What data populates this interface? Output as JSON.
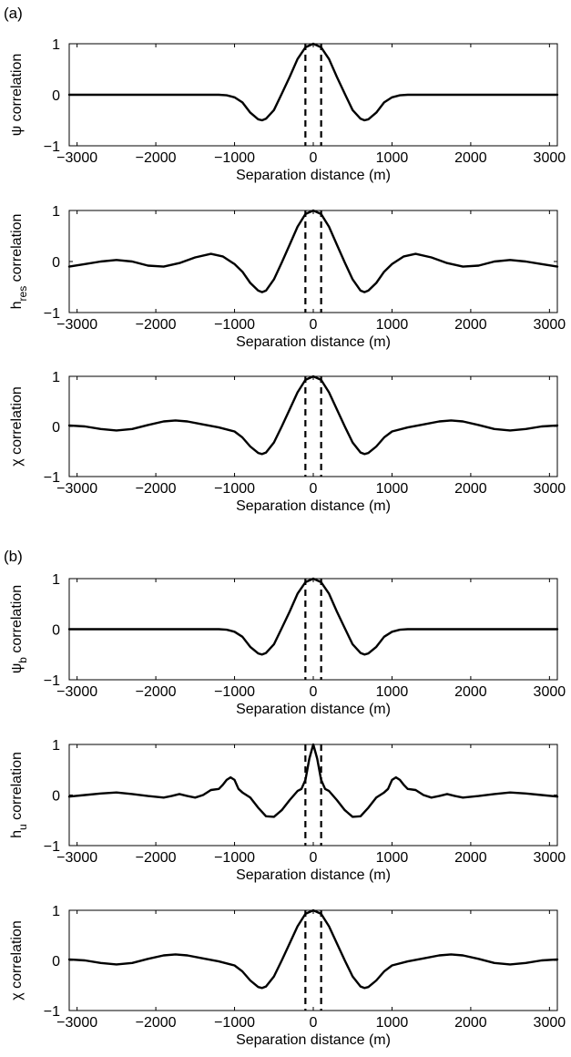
{
  "panel_labels": [
    "(a)",
    "(b)"
  ],
  "chart_data": [
    {
      "type": "line",
      "group": "(a)",
      "title": "",
      "xlabel": "Separation distance (m)",
      "ylabel_main": "ψ correlation",
      "ylabel_sub": "",
      "xlim": [
        -3100,
        3100
      ],
      "ylim": [
        -1,
        1
      ],
      "xticks": [
        -3000,
        -2000,
        -1000,
        0,
        1000,
        2000,
        3000
      ],
      "xtick_labels": [
        "−3000",
        "−2000",
        "−1000",
        "0",
        "1000",
        "2000",
        "3000"
      ],
      "yticks": [
        -1,
        0,
        1
      ],
      "ytick_labels": [
        "−1",
        "0",
        "1"
      ],
      "grid": false,
      "vlines": [
        -100,
        100
      ],
      "series": [
        {
          "x": [
            -3100,
            -3000,
            -2500,
            -2000,
            -1500,
            -1300,
            -1200,
            -1100,
            -1000,
            -900,
            -800,
            -700,
            -650,
            -600,
            -500,
            -400,
            -300,
            -200,
            -100,
            0,
            100,
            200,
            300,
            400,
            500,
            600,
            650,
            700,
            800,
            900,
            1000,
            1100,
            1200,
            1300,
            1500,
            2000,
            2500,
            3000,
            3100
          ],
          "y": [
            0,
            0,
            0,
            0,
            0,
            0,
            0,
            -0.01,
            -0.05,
            -0.15,
            -0.35,
            -0.48,
            -0.5,
            -0.47,
            -0.3,
            0.02,
            0.35,
            0.7,
            0.93,
            1.0,
            0.93,
            0.7,
            0.35,
            0.02,
            -0.3,
            -0.47,
            -0.5,
            -0.48,
            -0.35,
            -0.15,
            -0.05,
            -0.01,
            0,
            0,
            0,
            0,
            0,
            0,
            0
          ]
        }
      ]
    },
    {
      "type": "line",
      "group": "(a)",
      "title": "",
      "xlabel": "Separation distance (m)",
      "ylabel_main": "h",
      "ylabel_sub": "res",
      "ylabel_tail": " correlation",
      "xlim": [
        -3100,
        3100
      ],
      "ylim": [
        -1,
        1
      ],
      "xticks": [
        -3000,
        -2000,
        -1000,
        0,
        1000,
        2000,
        3000
      ],
      "xtick_labels": [
        "−3000",
        "−2000",
        "−1000",
        "0",
        "1000",
        "2000",
        "3000"
      ],
      "yticks": [
        -1,
        0,
        1
      ],
      "ytick_labels": [
        "−1",
        "0",
        "1"
      ],
      "grid": false,
      "vlines": [
        -100,
        100
      ],
      "series": [
        {
          "x": [
            -3100,
            -2900,
            -2700,
            -2500,
            -2300,
            -2100,
            -1900,
            -1700,
            -1500,
            -1300,
            -1150,
            -1000,
            -900,
            -800,
            -700,
            -650,
            -600,
            -500,
            -400,
            -300,
            -200,
            -100,
            0,
            100,
            200,
            300,
            400,
            500,
            600,
            650,
            700,
            800,
            900,
            1000,
            1150,
            1300,
            1500,
            1700,
            1900,
            2100,
            2300,
            2500,
            2700,
            2900,
            3100
          ],
          "y": [
            -0.1,
            -0.05,
            0.0,
            0.03,
            0.0,
            -0.08,
            -0.1,
            -0.03,
            0.08,
            0.15,
            0.1,
            -0.05,
            -0.2,
            -0.42,
            -0.57,
            -0.6,
            -0.57,
            -0.35,
            -0.02,
            0.33,
            0.68,
            0.93,
            1.0,
            0.93,
            0.68,
            0.33,
            -0.02,
            -0.35,
            -0.57,
            -0.6,
            -0.57,
            -0.42,
            -0.2,
            -0.05,
            0.1,
            0.15,
            0.08,
            -0.03,
            -0.1,
            -0.08,
            0.0,
            0.03,
            0.0,
            -0.05,
            -0.1
          ]
        }
      ]
    },
    {
      "type": "line",
      "group": "(a)",
      "title": "",
      "xlabel": "Separation distance (m)",
      "ylabel_main": "χ correlation",
      "ylabel_sub": "",
      "xlim": [
        -3100,
        3100
      ],
      "ylim": [
        -1,
        1
      ],
      "xticks": [
        -3000,
        -2000,
        -1000,
        0,
        1000,
        2000,
        3000
      ],
      "xtick_labels": [
        "−3000",
        "−2000",
        "−1000",
        "0",
        "1000",
        "2000",
        "3000"
      ],
      "yticks": [
        -1,
        0,
        1
      ],
      "ytick_labels": [
        "−1",
        "0",
        "1"
      ],
      "grid": false,
      "vlines": [
        -100,
        100
      ],
      "series": [
        {
          "x": [
            -3100,
            -2900,
            -2700,
            -2500,
            -2300,
            -2100,
            -1900,
            -1750,
            -1600,
            -1400,
            -1200,
            -1000,
            -900,
            -800,
            -700,
            -650,
            -600,
            -500,
            -400,
            -300,
            -200,
            -100,
            0,
            100,
            200,
            300,
            400,
            500,
            600,
            650,
            700,
            800,
            900,
            1000,
            1200,
            1400,
            1600,
            1750,
            1900,
            2100,
            2300,
            2500,
            2700,
            2900,
            3100
          ],
          "y": [
            0.02,
            0.0,
            -0.05,
            -0.08,
            -0.05,
            0.03,
            0.1,
            0.12,
            0.1,
            0.04,
            -0.02,
            -0.1,
            -0.22,
            -0.4,
            -0.53,
            -0.55,
            -0.52,
            -0.32,
            0.0,
            0.34,
            0.68,
            0.93,
            1.0,
            0.93,
            0.68,
            0.34,
            0.0,
            -0.32,
            -0.52,
            -0.55,
            -0.53,
            -0.4,
            -0.22,
            -0.1,
            -0.02,
            0.04,
            0.1,
            0.12,
            0.1,
            0.03,
            -0.05,
            -0.08,
            -0.05,
            0.0,
            0.02
          ]
        }
      ]
    },
    {
      "type": "line",
      "group": "(b)",
      "title": "",
      "xlabel": "Separation distance (m)",
      "ylabel_main": "ψ",
      "ylabel_sub": "b",
      "ylabel_tail": " correlation",
      "xlim": [
        -3100,
        3100
      ],
      "ylim": [
        -1,
        1
      ],
      "xticks": [
        -3000,
        -2000,
        -1000,
        0,
        1000,
        2000,
        3000
      ],
      "xtick_labels": [
        "−3000",
        "−2000",
        "−1000",
        "0",
        "1000",
        "2000",
        "3000"
      ],
      "yticks": [
        -1,
        0,
        1
      ],
      "ytick_labels": [
        "−1",
        "0",
        "1"
      ],
      "grid": false,
      "vlines": [
        -100,
        100
      ],
      "series": [
        {
          "x": [
            -3100,
            -3000,
            -2500,
            -2000,
            -1500,
            -1300,
            -1200,
            -1100,
            -1000,
            -900,
            -800,
            -700,
            -650,
            -600,
            -500,
            -400,
            -300,
            -200,
            -100,
            0,
            100,
            200,
            300,
            400,
            500,
            600,
            650,
            700,
            800,
            900,
            1000,
            1100,
            1200,
            1300,
            1500,
            2000,
            2500,
            3000,
            3100
          ],
          "y": [
            0,
            0,
            0,
            0,
            0,
            0,
            0,
            -0.01,
            -0.05,
            -0.15,
            -0.35,
            -0.48,
            -0.5,
            -0.47,
            -0.3,
            0.02,
            0.35,
            0.7,
            0.93,
            1.0,
            0.93,
            0.7,
            0.35,
            0.02,
            -0.3,
            -0.47,
            -0.5,
            -0.48,
            -0.35,
            -0.15,
            -0.05,
            -0.01,
            0,
            0,
            0,
            0,
            0,
            0,
            0
          ]
        }
      ]
    },
    {
      "type": "line",
      "group": "(b)",
      "title": "",
      "xlabel": "Separation distance (m)",
      "ylabel_main": "h",
      "ylabel_sub": "u",
      "ylabel_tail": " correlation",
      "xlim": [
        -3100,
        3100
      ],
      "ylim": [
        -1,
        1
      ],
      "xticks": [
        -3000,
        -2000,
        -1000,
        0,
        1000,
        2000,
        3000
      ],
      "xtick_labels": [
        "−3000",
        "−2000",
        "−1000",
        "0",
        "1000",
        "2000",
        "3000"
      ],
      "yticks": [
        -1,
        0,
        1
      ],
      "ytick_labels": [
        "−1",
        "0",
        "1"
      ],
      "grid": false,
      "vlines": [
        -100,
        100
      ],
      "series": [
        {
          "x": [
            -3100,
            -2900,
            -2700,
            -2500,
            -2300,
            -2100,
            -1900,
            -1800,
            -1700,
            -1600,
            -1500,
            -1400,
            -1300,
            -1200,
            -1150,
            -1100,
            -1050,
            -1000,
            -950,
            -900,
            -800,
            -700,
            -600,
            -500,
            -400,
            -300,
            -200,
            -150,
            -100,
            -50,
            0,
            50,
            100,
            150,
            200,
            300,
            400,
            500,
            600,
            700,
            800,
            900,
            950,
            1000,
            1050,
            1100,
            1150,
            1200,
            1300,
            1400,
            1500,
            1600,
            1700,
            1800,
            1900,
            2100,
            2300,
            2500,
            2700,
            2900,
            3100
          ],
          "y": [
            -0.03,
            0.0,
            0.03,
            0.05,
            0.02,
            -0.02,
            -0.05,
            -0.02,
            0.02,
            -0.02,
            -0.05,
            0.0,
            0.1,
            0.12,
            0.2,
            0.3,
            0.35,
            0.3,
            0.12,
            0.05,
            -0.05,
            -0.25,
            -0.42,
            -0.43,
            -0.3,
            -0.1,
            0.08,
            0.12,
            0.3,
            0.72,
            1.0,
            0.72,
            0.3,
            0.12,
            0.08,
            -0.1,
            -0.3,
            -0.43,
            -0.42,
            -0.25,
            -0.05,
            0.05,
            0.12,
            0.3,
            0.35,
            0.3,
            0.2,
            0.12,
            0.1,
            0.0,
            -0.05,
            -0.02,
            0.02,
            -0.02,
            -0.05,
            -0.02,
            0.02,
            0.05,
            0.03,
            0.0,
            -0.03
          ]
        }
      ]
    },
    {
      "type": "line",
      "group": "(b)",
      "title": "",
      "xlabel": "Separation distance (m)",
      "ylabel_main": "χ correlation",
      "ylabel_sub": "",
      "xlim": [
        -3100,
        3100
      ],
      "ylim": [
        -1,
        1
      ],
      "xticks": [
        -3000,
        -2000,
        -1000,
        0,
        1000,
        2000,
        3000
      ],
      "xtick_labels": [
        "−3000",
        "−2000",
        "−1000",
        "0",
        "1000",
        "2000",
        "3000"
      ],
      "yticks": [
        -1,
        0,
        1
      ],
      "ytick_labels": [
        "−1",
        "0",
        "1"
      ],
      "grid": false,
      "vlines": [
        -100,
        100
      ],
      "series": [
        {
          "x": [
            -3100,
            -2900,
            -2700,
            -2500,
            -2300,
            -2100,
            -1900,
            -1750,
            -1600,
            -1400,
            -1200,
            -1000,
            -900,
            -800,
            -700,
            -650,
            -600,
            -500,
            -400,
            -300,
            -200,
            -100,
            0,
            100,
            200,
            300,
            400,
            500,
            600,
            650,
            700,
            800,
            900,
            1000,
            1200,
            1400,
            1600,
            1750,
            1900,
            2100,
            2300,
            2500,
            2700,
            2900,
            3100
          ],
          "y": [
            0.02,
            0.0,
            -0.05,
            -0.08,
            -0.05,
            0.03,
            0.1,
            0.12,
            0.1,
            0.04,
            -0.02,
            -0.1,
            -0.22,
            -0.4,
            -0.53,
            -0.55,
            -0.52,
            -0.32,
            0.0,
            0.34,
            0.68,
            0.93,
            1.0,
            0.93,
            0.68,
            0.34,
            0.0,
            -0.32,
            -0.52,
            -0.55,
            -0.53,
            -0.4,
            -0.22,
            -0.1,
            -0.02,
            0.04,
            0.1,
            0.12,
            0.1,
            0.03,
            -0.05,
            -0.08,
            -0.05,
            0.0,
            0.02
          ]
        }
      ]
    }
  ]
}
